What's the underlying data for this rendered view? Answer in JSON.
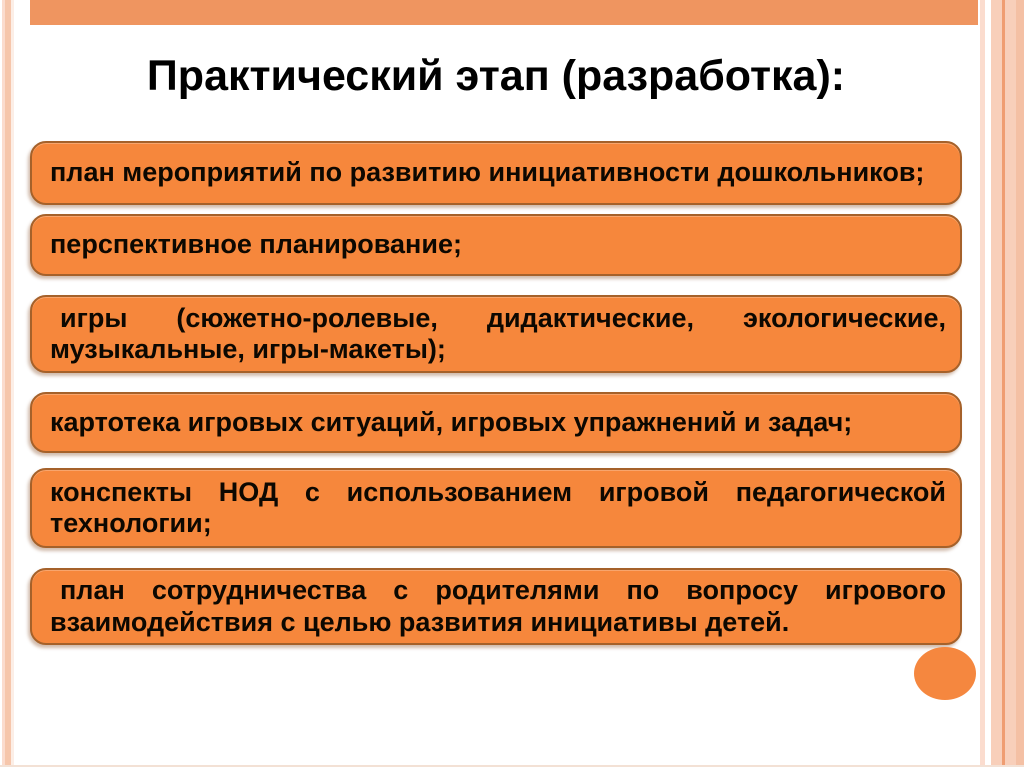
{
  "slide": {
    "title": "Практический этап (разработка):",
    "items": [
      {
        "lines": [
          "план мероприятий по развитию инициативности дошкольников;"
        ],
        "justify": false,
        "indent": false
      },
      {
        "lines": [
          "перспективное планирование;"
        ],
        "justify": false,
        "indent": false
      },
      {
        "lines": [
          "игры (сюжетно-ролевые, дидактические, экологические,",
          "музыкальные, игры-макеты);"
        ],
        "justify": true,
        "indent": true
      },
      {
        "lines": [
          "картотека игровых ситуаций, игровых упражнений и задач;"
        ],
        "justify": false,
        "indent": false
      },
      {
        "lines": [
          "конспекты НОД с использованием игровой педагогической",
          "технологии;"
        ],
        "justify": true,
        "indent": false
      },
      {
        "lines": [
          "план сотрудничества с родителями по вопросу игрового",
          "взаимодействия с целью развития инициативы детей."
        ],
        "justify": true,
        "indent": true
      }
    ],
    "colors": {
      "box_fill": "#F6873C",
      "box_border": "#A5612A",
      "accent_bar": "#EF9560",
      "accent_circle": "#F5873F",
      "stripe_light": "#FBDCCE",
      "stripe_medium": "#F6C6AB",
      "stripe_dark": "#EF9D72"
    }
  }
}
